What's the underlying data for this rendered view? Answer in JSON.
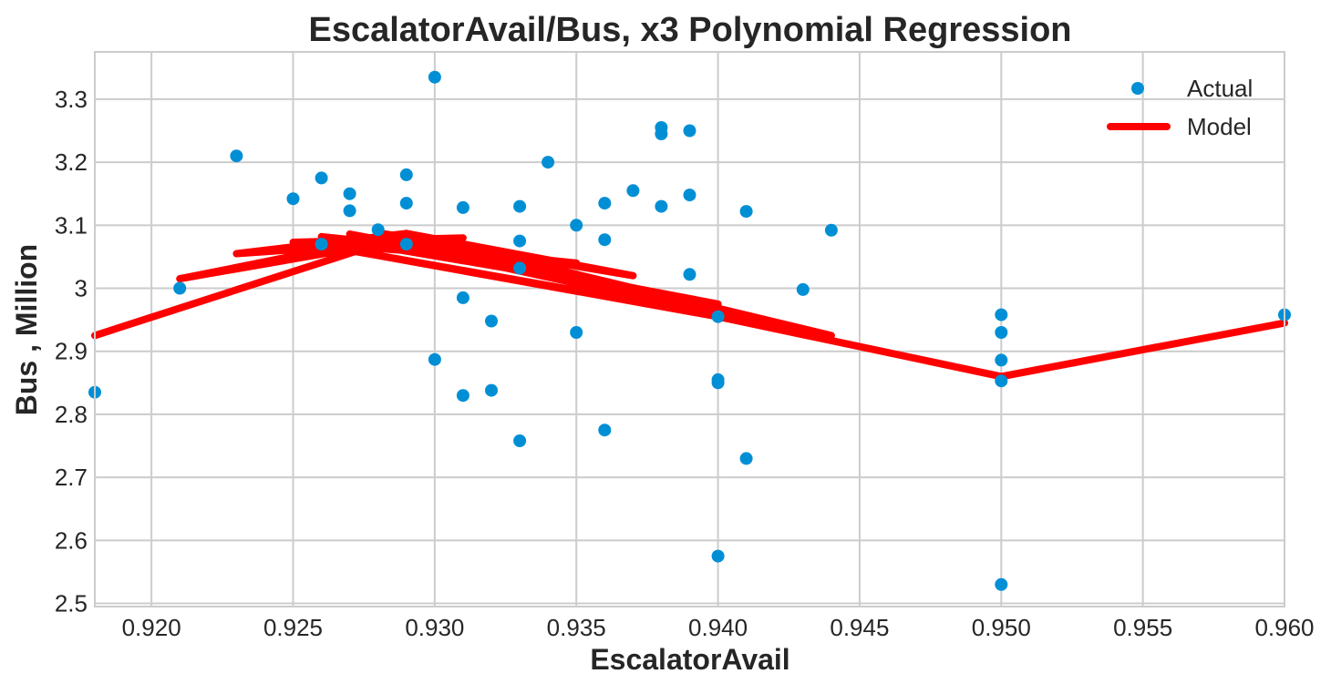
{
  "chart_data": {
    "type": "scatter",
    "title": "EscalatorAvail/Bus, x3 Polynomial Regression",
    "xlabel": "EscalatorAvail",
    "ylabel": "Bus , Million",
    "xlim": [
      0.918,
      0.96
    ],
    "ylim": [
      2.495,
      3.375
    ],
    "xticks": [
      0.92,
      0.925,
      0.93,
      0.935,
      0.94,
      0.945,
      0.95,
      0.955,
      0.96
    ],
    "xtick_labels": [
      "0.920",
      "0.925",
      "0.930",
      "0.935",
      "0.940",
      "0.945",
      "0.950",
      "0.955",
      "0.960"
    ],
    "yticks": [
      2.5,
      2.6,
      2.7,
      2.8,
      2.9,
      3.0,
      3.1,
      3.2,
      3.3
    ],
    "ytick_labels": [
      "2.5",
      "2.6",
      "2.7",
      "2.8",
      "2.9",
      "3",
      "3.1",
      "3.2",
      "3.3"
    ],
    "grid": true,
    "legend_position": "top-right",
    "series": [
      {
        "name": "Actual",
        "kind": "scatter",
        "color": "#008fd5",
        "points": [
          [
            0.918,
            2.835
          ],
          [
            0.921,
            3.0
          ],
          [
            0.923,
            3.21
          ],
          [
            0.925,
            3.142
          ],
          [
            0.926,
            3.175
          ],
          [
            0.926,
            3.07
          ],
          [
            0.927,
            3.15
          ],
          [
            0.927,
            3.123
          ],
          [
            0.928,
            3.093
          ],
          [
            0.929,
            3.18
          ],
          [
            0.929,
            3.135
          ],
          [
            0.929,
            3.07
          ],
          [
            0.93,
            3.335
          ],
          [
            0.93,
            2.887
          ],
          [
            0.931,
            3.128
          ],
          [
            0.931,
            2.985
          ],
          [
            0.931,
            2.83
          ],
          [
            0.932,
            2.948
          ],
          [
            0.932,
            2.838
          ],
          [
            0.933,
            3.13
          ],
          [
            0.933,
            3.075
          ],
          [
            0.933,
            3.032
          ],
          [
            0.933,
            2.758
          ],
          [
            0.934,
            3.2
          ],
          [
            0.935,
            3.1
          ],
          [
            0.935,
            2.93
          ],
          [
            0.936,
            3.135
          ],
          [
            0.936,
            3.077
          ],
          [
            0.936,
            2.775
          ],
          [
            0.937,
            3.155
          ],
          [
            0.938,
            3.255
          ],
          [
            0.938,
            3.245
          ],
          [
            0.938,
            3.13
          ],
          [
            0.939,
            3.25
          ],
          [
            0.939,
            3.148
          ],
          [
            0.939,
            3.022
          ],
          [
            0.94,
            2.955
          ],
          [
            0.94,
            2.855
          ],
          [
            0.94,
            2.85
          ],
          [
            0.94,
            2.575
          ],
          [
            0.941,
            3.122
          ],
          [
            0.941,
            2.73
          ],
          [
            0.943,
            2.998
          ],
          [
            0.944,
            3.092
          ],
          [
            0.95,
            2.958
          ],
          [
            0.95,
            2.93
          ],
          [
            0.95,
            2.886
          ],
          [
            0.95,
            2.853
          ],
          [
            0.95,
            2.53
          ],
          [
            0.96,
            2.958
          ]
        ]
      },
      {
        "name": "Model",
        "kind": "line",
        "color": "#ff0000",
        "points": [
          [
            0.918,
            2.925
          ],
          [
            0.928,
            3.07
          ],
          [
            0.921,
            3.015
          ],
          [
            0.929,
            3.087
          ],
          [
            0.923,
            3.055
          ],
          [
            0.931,
            3.08
          ],
          [
            0.925,
            3.073
          ],
          [
            0.935,
            3.04
          ],
          [
            0.926,
            3.082
          ],
          [
            0.94,
            2.975
          ],
          [
            0.927,
            3.086
          ],
          [
            0.944,
            2.92
          ],
          [
            0.928,
            3.088
          ],
          [
            0.937,
            3.02
          ],
          [
            0.929,
            3.087
          ],
          [
            0.944,
            2.925
          ],
          [
            0.927,
            3.06
          ],
          [
            0.94,
            2.955
          ],
          [
            0.95,
            2.86
          ],
          [
            0.96,
            2.945
          ]
        ]
      }
    ]
  }
}
